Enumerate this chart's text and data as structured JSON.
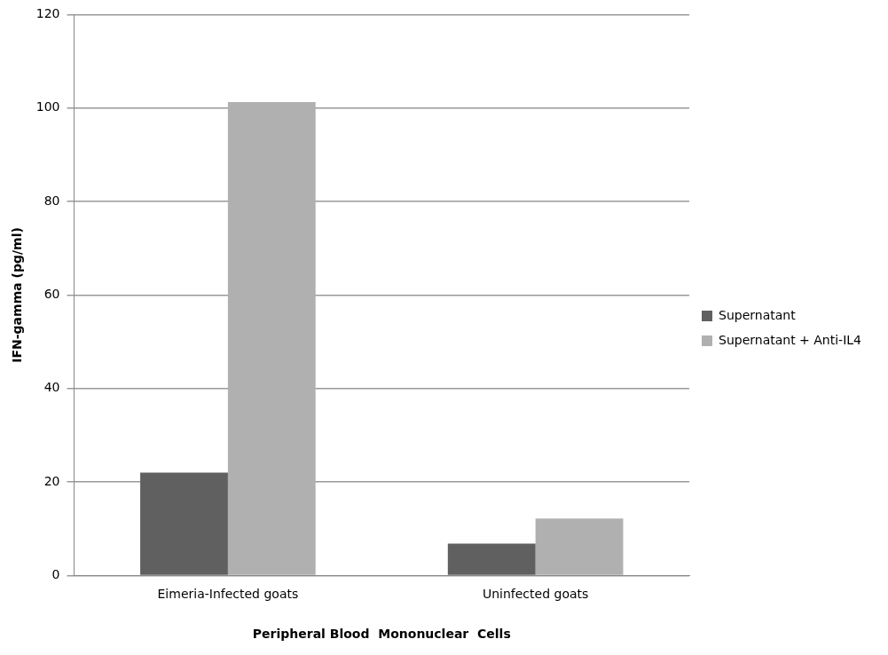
{
  "chart_data": {
    "type": "bar",
    "xlabel": "Peripheral Blood  Mononuclear  Cells",
    "ylabel": "IFN-gamma (pg/ml)",
    "categories": [
      "Eimeria-Infected goats",
      "Uninfected goats"
    ],
    "series": [
      {
        "name": "Supernatant",
        "color": "#606060",
        "values": [
          22,
          6.8
        ]
      },
      {
        "name": "Supernatant + Anti-IL4",
        "color": "#b0b0b0",
        "values": [
          101.3,
          12.2
        ]
      }
    ],
    "ylim": [
      0,
      120
    ],
    "yticks": [
      0,
      20,
      40,
      60,
      80,
      100,
      120
    ],
    "grid": "y",
    "legend": "right"
  }
}
